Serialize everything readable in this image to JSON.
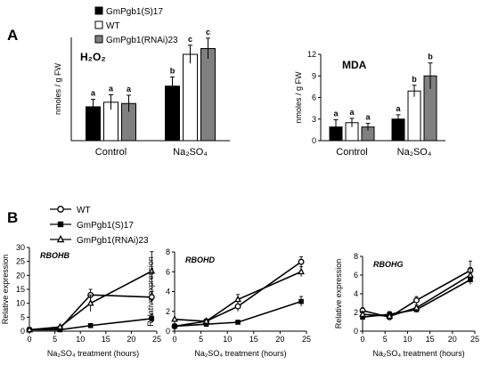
{
  "panels": {
    "a": "A",
    "b": "B"
  },
  "legend_a": [
    {
      "name": "GmPgb1(S)17",
      "fill": "#000000"
    },
    {
      "name": "WT",
      "fill": "#ffffff"
    },
    {
      "name": "GmPgb1(RNAi)23",
      "fill": "#808080"
    }
  ],
  "legend_b": [
    {
      "name": "WT",
      "marker": "circle-open"
    },
    {
      "name": "GmPgb1(S)17",
      "marker": "square-filled"
    },
    {
      "name": "GmPgb1(RNAi)23",
      "marker": "triangle-open"
    }
  ],
  "colors": {
    "bar_black": "#000000",
    "bar_white": "#ffffff",
    "bar_gray": "#808080",
    "line": "#000000"
  },
  "chart_data": [
    {
      "id": "h2o2",
      "type": "bar",
      "title": "H₂O₂",
      "ylabel": "nmoles / g FW",
      "ylim": [
        0,
        25
      ],
      "categories": [
        "Control",
        "Na₂SO₄"
      ],
      "series": [
        {
          "name": "GmPgb1(S)17",
          "values": [
            8.2,
            13.2
          ],
          "errors": [
            1.8,
            2.2
          ],
          "letters": [
            "a",
            "b"
          ]
        },
        {
          "name": "WT",
          "values": [
            9.3,
            20.9
          ],
          "errors": [
            1.8,
            2.2
          ],
          "letters": [
            "a",
            "c"
          ]
        },
        {
          "name": "GmPgb1(RNAi)23",
          "values": [
            9.0,
            22.3
          ],
          "errors": [
            2.0,
            2.5
          ],
          "letters": [
            "a",
            "c"
          ]
        }
      ]
    },
    {
      "id": "mda",
      "type": "bar",
      "title": "MDA",
      "ylabel": "nmoles / g FW",
      "ylim": [
        0,
        12
      ],
      "yticks": [
        0,
        3,
        6,
        9,
        12
      ],
      "categories": [
        "Control",
        "Na₂SO₄"
      ],
      "series": [
        {
          "name": "GmPgb1(S)17",
          "values": [
            1.9,
            3.0
          ],
          "errors": [
            1.0,
            0.6
          ],
          "letters": [
            "a",
            "a"
          ]
        },
        {
          "name": "WT",
          "values": [
            2.5,
            6.9
          ],
          "errors": [
            0.6,
            0.8
          ],
          "letters": [
            "a",
            "b"
          ]
        },
        {
          "name": "GmPgb1(RNAi)23",
          "values": [
            1.9,
            9.0
          ],
          "errors": [
            0.5,
            1.8
          ],
          "letters": [
            "a",
            "b"
          ]
        }
      ]
    },
    {
      "id": "rbohb",
      "type": "line",
      "title": "RBOHB",
      "ylabel": "Relative expression",
      "xlabel": "Na₂SO₄ treatment (hours)",
      "ylim": [
        0,
        30
      ],
      "yticks": [
        0,
        5,
        10,
        15,
        20,
        25,
        30
      ],
      "xlim": [
        0,
        25
      ],
      "xticks": [
        0,
        5,
        10,
        15,
        20,
        25
      ],
      "x": [
        0,
        6,
        12,
        24
      ],
      "series": [
        {
          "name": "WT",
          "values": [
            0.5,
            1,
            13,
            12.2
          ],
          "errors": [
            0,
            0,
            2,
            2
          ]
        },
        {
          "name": "GmPgb1(S)17",
          "values": [
            0.5,
            0.5,
            2,
            4.5
          ],
          "errors": [
            0,
            0,
            0.5,
            1.5
          ]
        },
        {
          "name": "GmPgb1(RNAi)23",
          "values": [
            0.5,
            1.5,
            10,
            21.5
          ],
          "errors": [
            0,
            0,
            3,
            7
          ]
        }
      ]
    },
    {
      "id": "rbohd",
      "type": "line",
      "title": "RBOHD",
      "ylabel": "Relative expression",
      "xlabel": "Na₂SO₄ treatment (hours)",
      "ylim": [
        0,
        8
      ],
      "yticks": [
        0,
        2,
        4,
        6,
        8
      ],
      "xlim": [
        0,
        25
      ],
      "xticks": [
        0,
        5,
        10,
        15,
        20,
        25
      ],
      "x": [
        0,
        6,
        12,
        24
      ],
      "series": [
        {
          "name": "WT",
          "values": [
            0.5,
            1,
            2.5,
            7
          ],
          "errors": [
            0,
            0,
            0.5,
            0.5
          ]
        },
        {
          "name": "GmPgb1(S)17",
          "values": [
            0.5,
            0.7,
            0.9,
            3
          ],
          "errors": [
            0,
            0,
            0,
            0.5
          ]
        },
        {
          "name": "GmPgb1(RNAi)23",
          "values": [
            1.2,
            1,
            3.2,
            6
          ],
          "errors": [
            0,
            0,
            0.5,
            0.5
          ]
        }
      ]
    },
    {
      "id": "rbohg",
      "type": "line",
      "title": "RBOHG",
      "ylabel": "Relative expression",
      "xlabel": "Na₂SO₄ treatment (hours)",
      "ylim": [
        0,
        8
      ],
      "yticks": [
        0,
        2,
        4,
        6,
        8
      ],
      "xlim": [
        0,
        25
      ],
      "xticks": [
        0,
        5,
        10,
        15,
        20,
        25
      ],
      "x": [
        0,
        6,
        12,
        24
      ],
      "series": [
        {
          "name": "WT",
          "values": [
            2.2,
            1.5,
            3.3,
            6.5
          ],
          "errors": [
            0.3,
            0.3,
            0.4,
            1.0
          ]
        },
        {
          "name": "GmPgb1(S)17",
          "values": [
            1.5,
            1.8,
            2.3,
            5.5
          ],
          "errors": [
            0.3,
            0.3,
            0.3,
            0.5
          ]
        },
        {
          "name": "GmPgb1(RNAi)23",
          "values": [
            1.8,
            1.6,
            2.5,
            6.0
          ],
          "errors": [
            0.3,
            0.3,
            0.3,
            0.8
          ]
        }
      ]
    }
  ]
}
